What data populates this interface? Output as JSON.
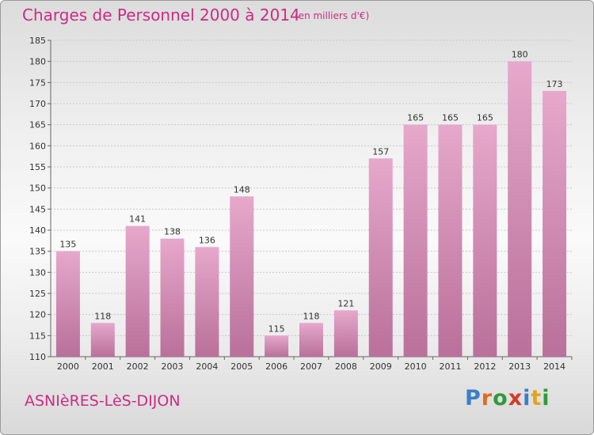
{
  "title": "Charges de Personnel 2000 à 2014",
  "subtitle": "(en milliers d'€)",
  "location": "ASNIèRES-LèS-DIJON",
  "brand": {
    "text": "Proxiti",
    "colors": [
      "#3a7fc8",
      "#e06c1e",
      "#2f9a3c",
      "#d23a2a",
      "#3a7fc8",
      "#e0a41e",
      "#2f9a3c"
    ]
  },
  "colors": {
    "accent": "#cc2b84",
    "bar": "#d98fb7",
    "bar_dark": "#b9709a"
  },
  "chart_data": {
    "type": "bar",
    "title": "Charges de Personnel 2000 à 2014",
    "subtitle": "(en milliers d'€)",
    "categories": [
      "2000",
      "2001",
      "2002",
      "2003",
      "2004",
      "2005",
      "2006",
      "2007",
      "2008",
      "2009",
      "2010",
      "2011",
      "2012",
      "2013",
      "2014"
    ],
    "values": [
      135,
      118,
      141,
      138,
      136,
      148,
      115,
      118,
      121,
      157,
      165,
      165,
      165,
      180,
      173
    ],
    "data_labels": [
      "135",
      "118",
      "141",
      "138",
      "136",
      "148",
      "115",
      "118",
      "121",
      "157",
      "165",
      "165",
      "165",
      "180",
      "173"
    ],
    "ylim": [
      110,
      185
    ],
    "yticks": [
      110,
      115,
      120,
      125,
      130,
      135,
      140,
      145,
      150,
      155,
      160,
      165,
      170,
      175,
      180,
      185
    ],
    "xlabel": "",
    "ylabel": "",
    "grid": true
  }
}
